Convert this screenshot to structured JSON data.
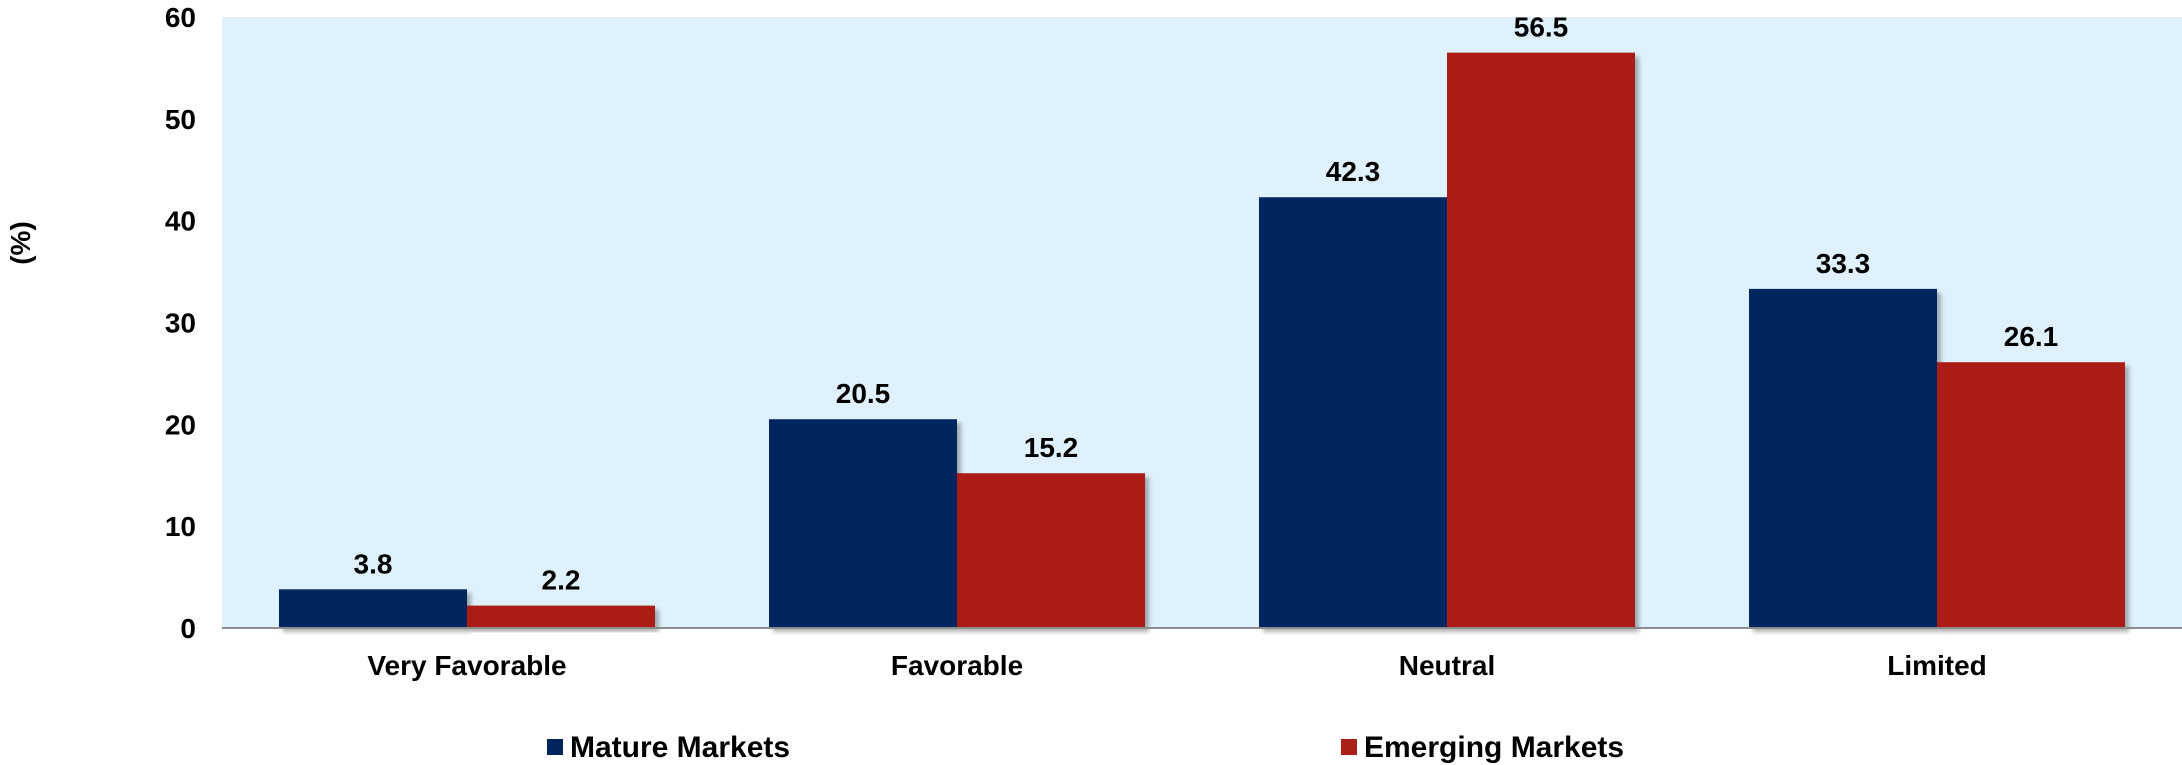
{
  "chart_data": {
    "type": "bar",
    "title": "",
    "xlabel": "",
    "ylabel": "(%)",
    "ylim": [
      0,
      60
    ],
    "yticks": [
      "0",
      "10",
      "20",
      "30",
      "40",
      "50",
      "60"
    ],
    "categories": [
      "Very Favorable",
      "Favorable",
      "Neutral",
      "Limited"
    ],
    "series": [
      {
        "name": "Mature Markets",
        "color": "#02255e",
        "values": [
          3.8,
          20.5,
          42.3,
          33.3
        ]
      },
      {
        "name": "Emerging Markets",
        "color": "#ab1f18",
        "values": [
          2.2,
          15.2,
          56.5,
          26.1
        ]
      }
    ],
    "plot_background": "#dff1fc",
    "legend_position": "bottom",
    "grid": false,
    "data_labels": true
  }
}
